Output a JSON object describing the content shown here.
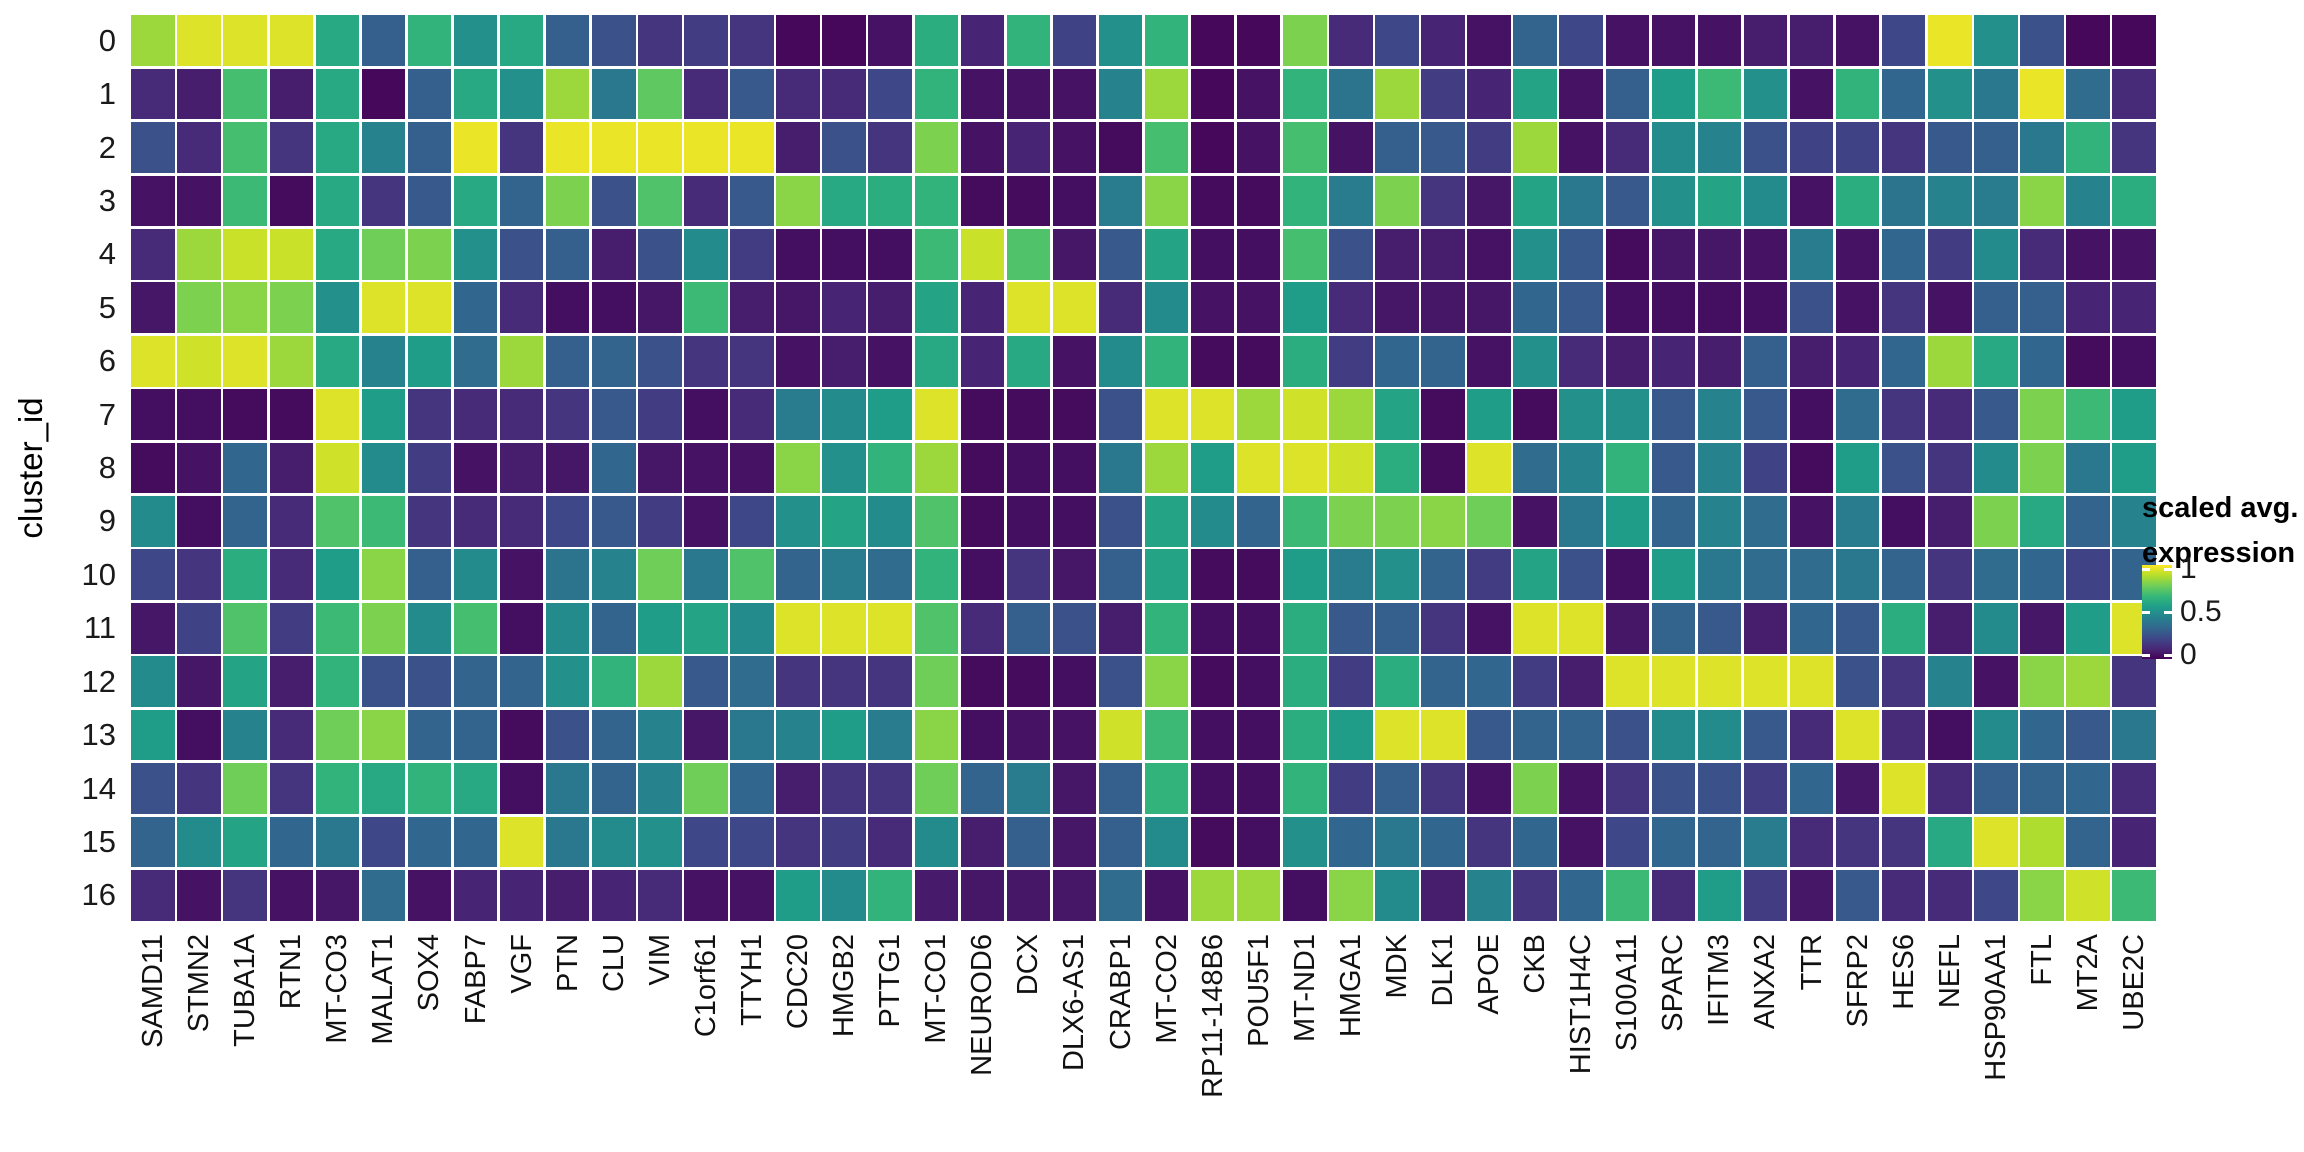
{
  "figure": {
    "y_axis_title": "cluster_id",
    "legend": {
      "title_line1": "scaled avg.",
      "title_line2": "expression"
    }
  },
  "chart_data": {
    "type": "heatmap",
    "title": "",
    "xlabel": "",
    "ylabel": "cluster_id",
    "legend_title": "scaled avg. expression",
    "legend_tick_labels": [
      "1",
      "0.5",
      "0"
    ],
    "legend_tick_values": [
      1,
      0.5,
      0
    ],
    "value_range": [
      0,
      1
    ],
    "colormap": "viridis",
    "colormap_anchors": [
      "#440154",
      "#482878",
      "#3e4989",
      "#31688e",
      "#26828e",
      "#1f9e89",
      "#35b779",
      "#6ece58",
      "#b5de2b",
      "#fde725"
    ],
    "grid": false,
    "legend_position": "right",
    "x": [
      "SAMD11",
      "STMN2",
      "TUBA1A",
      "RTN1",
      "MT-CO3",
      "MALAT1",
      "SOX4",
      "FABP7",
      "VGF",
      "PTN",
      "CLU",
      "VIM",
      "C1orf61",
      "TTYH1",
      "CDC20",
      "HMGB2",
      "PTTG1",
      "MT-CO1",
      "NEUROD6",
      "DCX",
      "DLX6-AS1",
      "CRABP1",
      "MT-CO2",
      "RP11-148B6",
      "POU5F1",
      "MT-ND1",
      "HMGA1",
      "MDK",
      "DLK1",
      "APOE",
      "CKB",
      "HIST1H4C",
      "S100A11",
      "SPARC",
      "IFITM3",
      "ANXA2",
      "TTR",
      "SFRP2",
      "HES6",
      "NEFL",
      "HSP90AA1",
      "FTL",
      "MT2A",
      "UBE2C"
    ],
    "y": [
      "0",
      "1",
      "2",
      "3",
      "4",
      "5",
      "6",
      "7",
      "8",
      "9",
      "10",
      "11",
      "12",
      "13",
      "14",
      "15",
      "16"
    ],
    "values": [
      [
        0.85,
        0.95,
        0.95,
        0.95,
        0.6,
        0.3,
        0.65,
        0.5,
        0.6,
        0.3,
        0.25,
        0.15,
        0.18,
        0.15,
        0.02,
        0.02,
        0.05,
        0.62,
        0.1,
        0.65,
        0.2,
        0.5,
        0.65,
        0.02,
        0.02,
        0.8,
        0.12,
        0.22,
        0.1,
        0.05,
        0.32,
        0.22,
        0.05,
        0.05,
        0.05,
        0.08,
        0.08,
        0.05,
        0.22,
        0.97,
        0.5,
        0.25,
        0.02,
        0.02
      ],
      [
        0.12,
        0.08,
        0.7,
        0.08,
        0.6,
        0.02,
        0.3,
        0.6,
        0.5,
        0.85,
        0.4,
        0.75,
        0.12,
        0.28,
        0.12,
        0.12,
        0.22,
        0.65,
        0.05,
        0.05,
        0.05,
        0.45,
        0.85,
        0.02,
        0.05,
        0.65,
        0.38,
        0.85,
        0.18,
        0.1,
        0.58,
        0.05,
        0.3,
        0.55,
        0.68,
        0.5,
        0.05,
        0.65,
        0.33,
        0.5,
        0.4,
        0.97,
        0.35,
        0.12
      ],
      [
        0.25,
        0.12,
        0.7,
        0.15,
        0.6,
        0.45,
        0.3,
        0.97,
        0.15,
        0.97,
        0.97,
        0.97,
        0.97,
        0.97,
        0.08,
        0.25,
        0.15,
        0.8,
        0.05,
        0.1,
        0.05,
        0.03,
        0.7,
        0.02,
        0.05,
        0.7,
        0.05,
        0.3,
        0.28,
        0.18,
        0.85,
        0.05,
        0.12,
        0.48,
        0.45,
        0.25,
        0.2,
        0.2,
        0.15,
        0.28,
        0.3,
        0.4,
        0.65,
        0.15
      ],
      [
        0.05,
        0.05,
        0.68,
        0.03,
        0.6,
        0.15,
        0.28,
        0.6,
        0.32,
        0.8,
        0.25,
        0.72,
        0.12,
        0.28,
        0.82,
        0.6,
        0.62,
        0.65,
        0.03,
        0.03,
        0.04,
        0.42,
        0.82,
        0.03,
        0.03,
        0.65,
        0.42,
        0.8,
        0.15,
        0.06,
        0.58,
        0.4,
        0.28,
        0.5,
        0.58,
        0.48,
        0.05,
        0.62,
        0.38,
        0.45,
        0.42,
        0.82,
        0.45,
        0.62
      ],
      [
        0.12,
        0.85,
        0.92,
        0.92,
        0.6,
        0.78,
        0.8,
        0.5,
        0.25,
        0.3,
        0.08,
        0.25,
        0.48,
        0.18,
        0.04,
        0.04,
        0.04,
        0.68,
        0.92,
        0.72,
        0.06,
        0.28,
        0.58,
        0.04,
        0.04,
        0.7,
        0.25,
        0.08,
        0.08,
        0.05,
        0.5,
        0.28,
        0.03,
        0.06,
        0.06,
        0.05,
        0.42,
        0.05,
        0.33,
        0.18,
        0.48,
        0.12,
        0.05,
        0.05
      ],
      [
        0.06,
        0.8,
        0.82,
        0.8,
        0.5,
        0.95,
        0.95,
        0.33,
        0.12,
        0.04,
        0.04,
        0.06,
        0.68,
        0.08,
        0.06,
        0.1,
        0.08,
        0.58,
        0.1,
        0.95,
        0.95,
        0.12,
        0.48,
        0.05,
        0.05,
        0.55,
        0.12,
        0.06,
        0.06,
        0.06,
        0.33,
        0.28,
        0.04,
        0.04,
        0.04,
        0.04,
        0.25,
        0.05,
        0.15,
        0.05,
        0.3,
        0.3,
        0.1,
        0.1
      ],
      [
        0.95,
        0.93,
        0.95,
        0.85,
        0.6,
        0.45,
        0.55,
        0.35,
        0.85,
        0.3,
        0.32,
        0.25,
        0.15,
        0.15,
        0.05,
        0.08,
        0.05,
        0.6,
        0.1,
        0.6,
        0.05,
        0.48,
        0.65,
        0.03,
        0.03,
        0.62,
        0.18,
        0.33,
        0.32,
        0.05,
        0.5,
        0.12,
        0.08,
        0.1,
        0.08,
        0.3,
        0.08,
        0.1,
        0.33,
        0.85,
        0.6,
        0.33,
        0.03,
        0.04
      ],
      [
        0.04,
        0.04,
        0.03,
        0.03,
        0.95,
        0.55,
        0.15,
        0.12,
        0.12,
        0.15,
        0.28,
        0.18,
        0.04,
        0.12,
        0.42,
        0.48,
        0.55,
        0.95,
        0.03,
        0.03,
        0.03,
        0.25,
        0.95,
        0.95,
        0.85,
        0.93,
        0.85,
        0.58,
        0.03,
        0.55,
        0.03,
        0.5,
        0.5,
        0.28,
        0.45,
        0.28,
        0.04,
        0.35,
        0.15,
        0.12,
        0.28,
        0.8,
        0.68,
        0.55
      ],
      [
        0.03,
        0.05,
        0.33,
        0.08,
        0.93,
        0.48,
        0.18,
        0.05,
        0.08,
        0.06,
        0.33,
        0.06,
        0.05,
        0.05,
        0.82,
        0.5,
        0.65,
        0.85,
        0.03,
        0.04,
        0.04,
        0.4,
        0.85,
        0.55,
        0.95,
        0.95,
        0.93,
        0.62,
        0.03,
        0.95,
        0.35,
        0.45,
        0.65,
        0.28,
        0.45,
        0.2,
        0.03,
        0.55,
        0.25,
        0.15,
        0.48,
        0.8,
        0.4,
        0.55
      ],
      [
        0.48,
        0.04,
        0.32,
        0.12,
        0.72,
        0.68,
        0.15,
        0.12,
        0.12,
        0.22,
        0.28,
        0.18,
        0.05,
        0.22,
        0.5,
        0.58,
        0.48,
        0.72,
        0.03,
        0.04,
        0.04,
        0.25,
        0.58,
        0.48,
        0.32,
        0.68,
        0.8,
        0.8,
        0.82,
        0.78,
        0.05,
        0.4,
        0.55,
        0.32,
        0.45,
        0.35,
        0.05,
        0.42,
        0.04,
        0.08,
        0.8,
        0.6,
        0.32,
        0.45
      ],
      [
        0.22,
        0.15,
        0.62,
        0.12,
        0.55,
        0.82,
        0.3,
        0.48,
        0.05,
        0.38,
        0.45,
        0.78,
        0.4,
        0.72,
        0.32,
        0.42,
        0.35,
        0.65,
        0.04,
        0.15,
        0.06,
        0.3,
        0.58,
        0.03,
        0.03,
        0.55,
        0.42,
        0.5,
        0.32,
        0.18,
        0.58,
        0.25,
        0.04,
        0.55,
        0.4,
        0.35,
        0.35,
        0.4,
        0.32,
        0.15,
        0.35,
        0.33,
        0.2,
        0.32
      ],
      [
        0.06,
        0.2,
        0.72,
        0.18,
        0.68,
        0.8,
        0.48,
        0.7,
        0.04,
        0.48,
        0.32,
        0.55,
        0.58,
        0.48,
        0.95,
        0.95,
        0.95,
        0.72,
        0.12,
        0.3,
        0.25,
        0.08,
        0.65,
        0.04,
        0.04,
        0.62,
        0.28,
        0.3,
        0.15,
        0.05,
        0.95,
        0.95,
        0.06,
        0.32,
        0.28,
        0.08,
        0.33,
        0.28,
        0.62,
        0.08,
        0.48,
        0.06,
        0.55,
        0.95
      ],
      [
        0.48,
        0.06,
        0.58,
        0.08,
        0.65,
        0.25,
        0.25,
        0.32,
        0.32,
        0.5,
        0.65,
        0.85,
        0.28,
        0.35,
        0.15,
        0.15,
        0.15,
        0.78,
        0.03,
        0.03,
        0.04,
        0.25,
        0.82,
        0.03,
        0.04,
        0.62,
        0.18,
        0.62,
        0.32,
        0.33,
        0.18,
        0.08,
        0.95,
        0.95,
        0.95,
        0.95,
        0.95,
        0.25,
        0.15,
        0.45,
        0.05,
        0.82,
        0.85,
        0.15
      ],
      [
        0.55,
        0.04,
        0.45,
        0.12,
        0.78,
        0.82,
        0.32,
        0.32,
        0.03,
        0.25,
        0.32,
        0.45,
        0.06,
        0.4,
        0.45,
        0.55,
        0.42,
        0.82,
        0.04,
        0.05,
        0.05,
        0.93,
        0.68,
        0.04,
        0.04,
        0.62,
        0.55,
        0.95,
        0.95,
        0.28,
        0.32,
        0.32,
        0.25,
        0.48,
        0.48,
        0.28,
        0.12,
        0.95,
        0.12,
        0.04,
        0.48,
        0.33,
        0.28,
        0.4
      ],
      [
        0.25,
        0.15,
        0.78,
        0.15,
        0.65,
        0.6,
        0.65,
        0.6,
        0.04,
        0.4,
        0.32,
        0.45,
        0.78,
        0.33,
        0.08,
        0.15,
        0.15,
        0.78,
        0.32,
        0.42,
        0.06,
        0.3,
        0.65,
        0.04,
        0.04,
        0.65,
        0.18,
        0.3,
        0.15,
        0.05,
        0.8,
        0.05,
        0.15,
        0.25,
        0.25,
        0.18,
        0.33,
        0.06,
        0.95,
        0.12,
        0.3,
        0.32,
        0.33,
        0.12
      ],
      [
        0.32,
        0.48,
        0.58,
        0.33,
        0.4,
        0.22,
        0.33,
        0.33,
        0.95,
        0.4,
        0.48,
        0.5,
        0.22,
        0.22,
        0.15,
        0.18,
        0.12,
        0.48,
        0.08,
        0.3,
        0.06,
        0.3,
        0.48,
        0.03,
        0.04,
        0.5,
        0.33,
        0.4,
        0.33,
        0.15,
        0.33,
        0.05,
        0.22,
        0.33,
        0.32,
        0.42,
        0.12,
        0.15,
        0.15,
        0.6,
        0.95,
        0.88,
        0.32,
        0.1
      ],
      [
        0.12,
        0.05,
        0.15,
        0.05,
        0.06,
        0.35,
        0.05,
        0.1,
        0.1,
        0.08,
        0.1,
        0.12,
        0.05,
        0.05,
        0.55,
        0.48,
        0.65,
        0.07,
        0.06,
        0.06,
        0.06,
        0.35,
        0.05,
        0.85,
        0.85,
        0.04,
        0.82,
        0.48,
        0.08,
        0.45,
        0.15,
        0.33,
        0.68,
        0.12,
        0.55,
        0.18,
        0.06,
        0.28,
        0.12,
        0.12,
        0.22,
        0.82,
        0.93,
        0.68
      ]
    ]
  }
}
